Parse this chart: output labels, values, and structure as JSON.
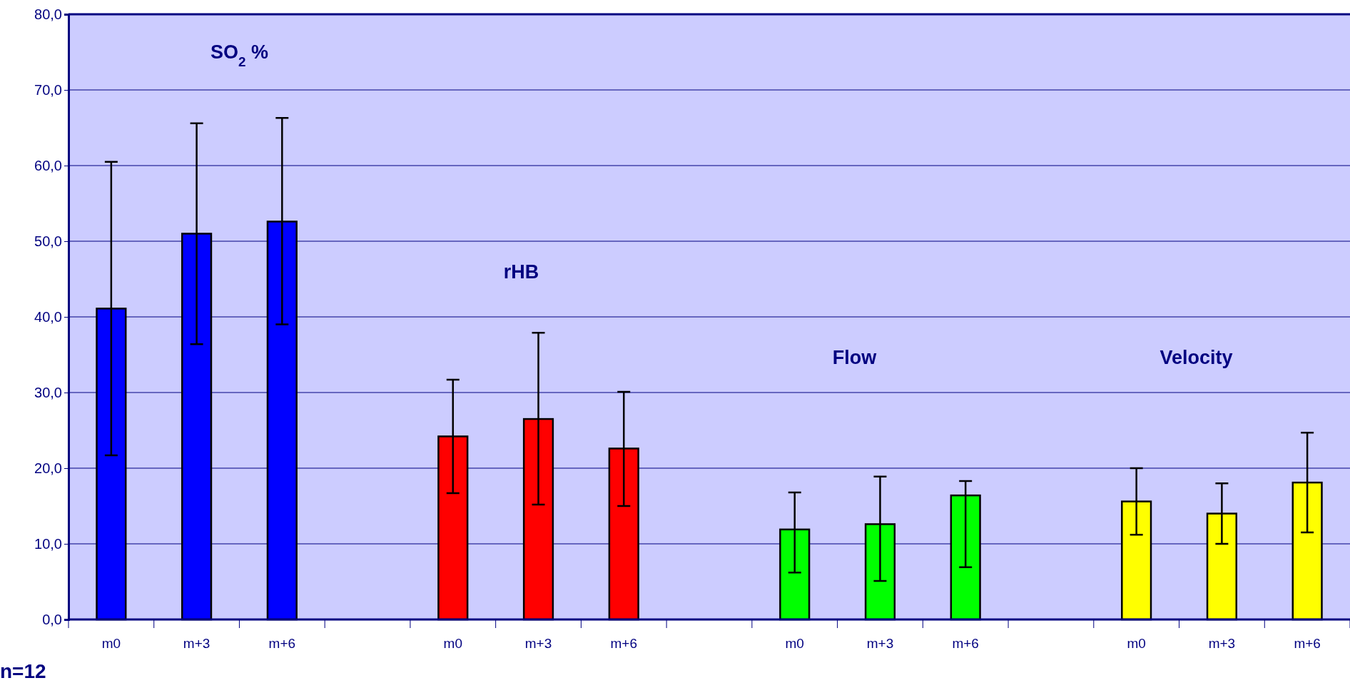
{
  "chart_data": {
    "type": "bar",
    "categories": [
      "m0",
      "m+3",
      "m+6",
      null,
      "m0",
      "m+3",
      "m+6",
      null,
      "m0",
      "m+3",
      "m+6",
      null,
      "m0",
      "m+3",
      "m+6"
    ],
    "values": [
      41.1,
      51.0,
      52.6,
      null,
      24.2,
      26.5,
      22.6,
      null,
      11.9,
      12.6,
      16.4,
      null,
      15.6,
      14.0,
      18.1
    ],
    "colors": [
      "#0000ff",
      "#0000ff",
      "#0000ff",
      null,
      "#ff0000",
      "#ff0000",
      "#ff0000",
      null,
      "#00ff00",
      "#00ff00",
      "#00ff00",
      null,
      "#ffff00",
      "#ffff00",
      "#ffff00"
    ],
    "errors": [
      [
        21.7,
        60.5
      ],
      [
        36.4,
        65.6
      ],
      [
        39.0,
        66.3
      ],
      null,
      [
        16.7,
        31.7
      ],
      [
        15.2,
        37.9
      ],
      [
        15.0,
        30.1
      ],
      null,
      [
        6.2,
        16.8
      ],
      [
        5.1,
        18.9
      ],
      [
        6.9,
        18.3
      ],
      null,
      [
        11.2,
        20.0
      ],
      [
        10.0,
        18.0
      ],
      [
        11.5,
        24.7
      ]
    ],
    "ylim": [
      0,
      80
    ],
    "yticks": [
      {
        "value": 0,
        "label": "0,0"
      },
      {
        "value": 10,
        "label": "10,0"
      },
      {
        "value": 20,
        "label": "20,0"
      },
      {
        "value": 30,
        "label": "30,0"
      },
      {
        "value": 40,
        "label": "40,0"
      },
      {
        "value": 50,
        "label": "50,0"
      },
      {
        "value": 60,
        "label": "60,0"
      },
      {
        "value": 70,
        "label": "70,0"
      },
      {
        "value": 80,
        "label": "80,0"
      }
    ],
    "grid": "y",
    "annotations": [
      "SO$_{2}$ %",
      "rHB",
      "Flow",
      "Velocity",
      "n=12"
    ]
  }
}
